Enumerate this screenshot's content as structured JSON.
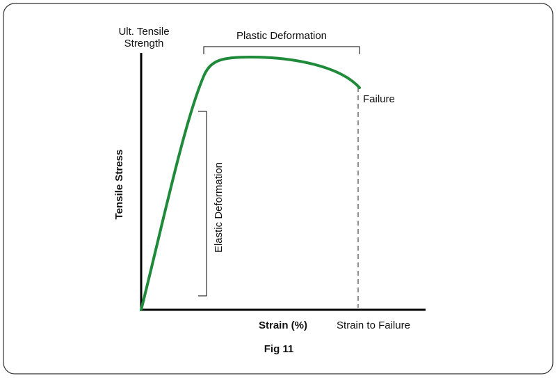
{
  "labels": {
    "ult_tensile_strength": [
      "Ult. Tensile",
      "Strength"
    ],
    "plastic_deformation": "Plastic Deformation",
    "failure": "Failure",
    "y_axis": "Tensile Stress",
    "elastic_deformation": "Elastic Deformation",
    "x_axis": "Strain (%)",
    "strain_to_failure": "Strain to Failure"
  },
  "caption": "Fig 11"
}
